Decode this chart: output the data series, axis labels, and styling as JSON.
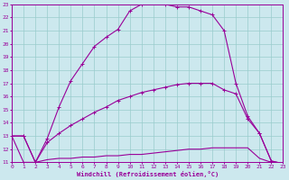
{
  "bg_color": "#cce8ee",
  "line_color": "#990099",
  "grid_color": "#99cccc",
  "xlabel": "Windchill (Refroidissement éolien,°C)",
  "xlim": [
    0,
    23
  ],
  "ylim": [
    11,
    23
  ],
  "xticks": [
    0,
    1,
    2,
    3,
    4,
    5,
    6,
    7,
    8,
    9,
    10,
    11,
    12,
    13,
    14,
    15,
    16,
    17,
    18,
    19,
    20,
    21,
    22,
    23
  ],
  "yticks": [
    11,
    12,
    13,
    14,
    15,
    16,
    17,
    18,
    19,
    20,
    21,
    22,
    23
  ],
  "arch_x": [
    0,
    1,
    2,
    3,
    4,
    5,
    6,
    7,
    8,
    9,
    10,
    11,
    12,
    13,
    14,
    15,
    16,
    17,
    18,
    19,
    20,
    21,
    22,
    23
  ],
  "arch_y": [
    13,
    13,
    11,
    12.8,
    15.2,
    17.2,
    18.5,
    19.8,
    20.5,
    21.1,
    22.5,
    23.0,
    23.1,
    23.0,
    22.8,
    22.8,
    22.5,
    22.2,
    21.0,
    17.0,
    14.5,
    13.2,
    11.1,
    10.9
  ],
  "flat_x": [
    0,
    1,
    2,
    3,
    4,
    5,
    6,
    7,
    8,
    9,
    10,
    11,
    12,
    13,
    14,
    15,
    16,
    17,
    18,
    19,
    20,
    21,
    22,
    23
  ],
  "flat_y": [
    13,
    11,
    11,
    11.2,
    11.3,
    11.3,
    11.4,
    11.4,
    11.5,
    11.5,
    11.6,
    11.6,
    11.7,
    11.8,
    11.9,
    12.0,
    12.0,
    12.1,
    12.1,
    12.1,
    12.1,
    11.3,
    11.0,
    10.9
  ],
  "diag_x": [
    0,
    1,
    2,
    3,
    4,
    5,
    6,
    7,
    8,
    9,
    10,
    11,
    12,
    13,
    14,
    15,
    16,
    17,
    18,
    19,
    20,
    21,
    22,
    23
  ],
  "diag_y": [
    13,
    13,
    11,
    12.5,
    13.2,
    13.8,
    14.3,
    14.8,
    15.2,
    15.7,
    16.0,
    16.3,
    16.5,
    16.7,
    16.9,
    17.0,
    17.0,
    17.0,
    16.5,
    16.2,
    14.3,
    13.2,
    11.1,
    10.9
  ]
}
